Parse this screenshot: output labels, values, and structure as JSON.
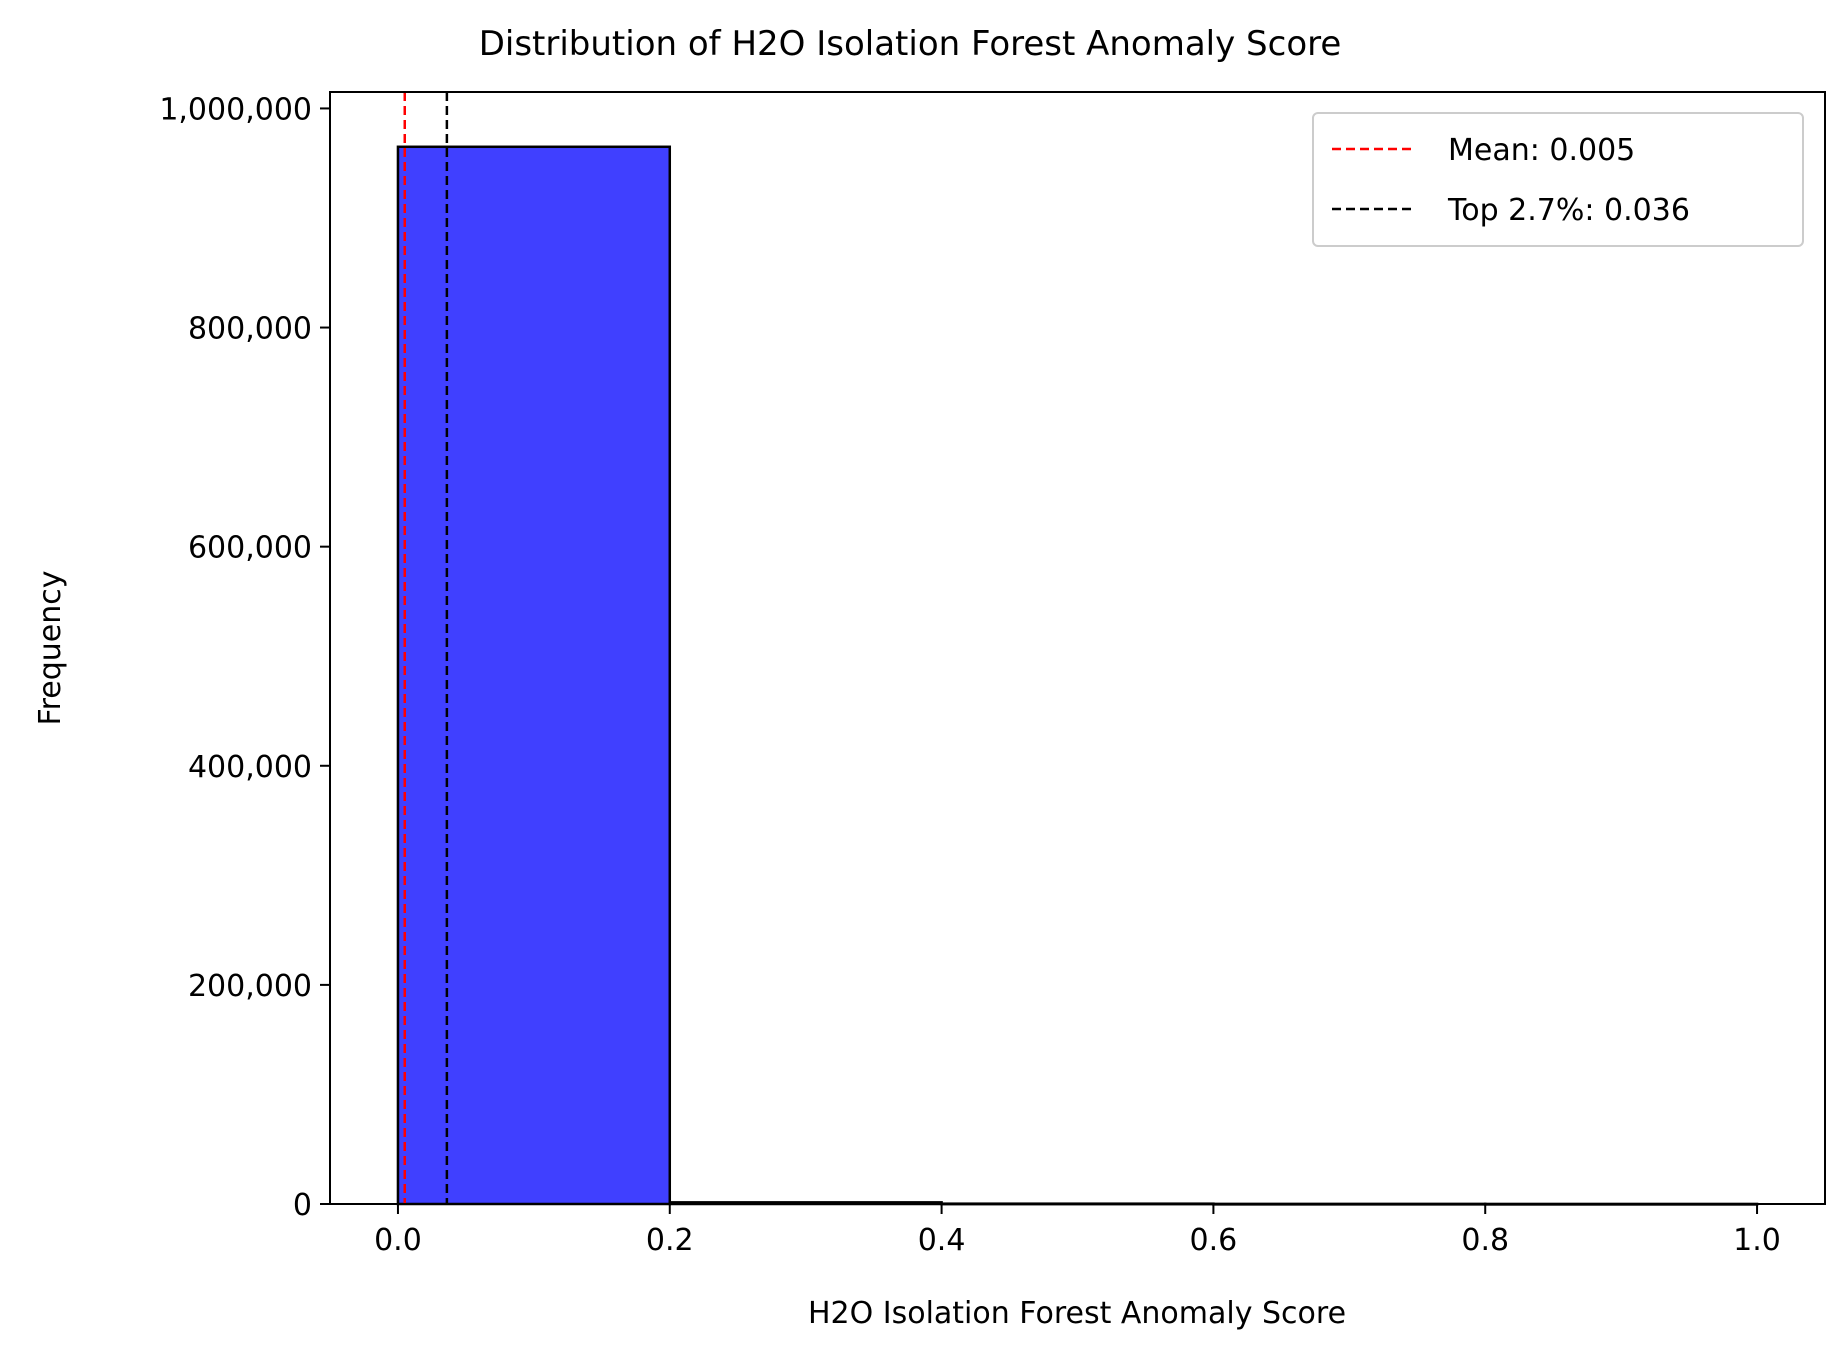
{
  "chart_data": {
    "type": "bar",
    "title": "Distribution of H2O Isolation Forest Anomaly Score",
    "xlabel": "H2O Isolation Forest Anomaly Score",
    "ylabel": "Frequency",
    "xlim": [
      -0.05,
      1.05
    ],
    "ylim": [
      0,
      1015000
    ],
    "x_ticks": [
      0.0,
      0.2,
      0.4,
      0.6,
      0.8,
      1.0
    ],
    "x_tick_labels": [
      "0.0",
      "0.2",
      "0.4",
      "0.6",
      "0.8",
      "1.0"
    ],
    "y_ticks": [
      0,
      200000,
      400000,
      600000,
      800000,
      1000000
    ],
    "y_tick_labels": [
      "0",
      "200,000",
      "400,000",
      "600,000",
      "800,000",
      "1,000,000"
    ],
    "bins": [
      {
        "x0": 0.0,
        "x1": 0.2,
        "count": 965000
      },
      {
        "x0": 0.2,
        "x1": 0.4,
        "count": 1500
      },
      {
        "x0": 0.4,
        "x1": 0.6,
        "count": 300
      },
      {
        "x0": 0.6,
        "x1": 0.8,
        "count": 100
      },
      {
        "x0": 0.8,
        "x1": 1.0,
        "count": 50
      }
    ],
    "bar_color": "#4040ff",
    "reference_lines": [
      {
        "label": "Mean: 0.005",
        "x": 0.005,
        "color": "#ff0000",
        "style": "dashed"
      },
      {
        "label": "Top 2.7%: 0.036",
        "x": 0.036,
        "color": "#000000",
        "style": "dashed"
      }
    ],
    "legend_position": "top-right",
    "grid": false
  }
}
